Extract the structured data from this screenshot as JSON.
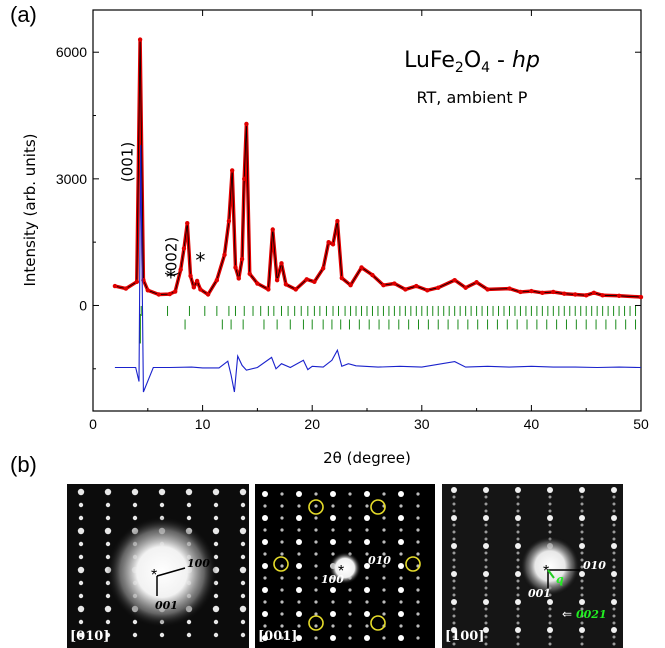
{
  "panel_a_label": "(a)",
  "panel_b_label": "(b)",
  "chart_data": {
    "type": "line",
    "title": "LuFe2O4 - hp",
    "title_parts": {
      "compound": "LuFe",
      "sub1": "2",
      "mid": "O",
      "sub2": "4",
      "sep": " - ",
      "phase": "hp"
    },
    "subtitle": "RT, ambient P",
    "xlabel": "2θ (degree)",
    "ylabel": "Intensity (arb. units)",
    "xlim": [
      0,
      50
    ],
    "ylim": [
      -2500,
      7000
    ],
    "x_ticks": [
      0,
      10,
      20,
      30,
      40,
      50
    ],
    "y_ticks": [
      0,
      3000,
      6000
    ],
    "grid": false,
    "annotations": [
      {
        "text": "(001)",
        "x": 3.6,
        "y": 3400,
        "rotate": true
      },
      {
        "text": "(002)",
        "x": 7.6,
        "y": 1150,
        "rotate": true
      },
      {
        "text": "*",
        "x": 7.1,
        "y": 500
      },
      {
        "text": "*",
        "x": 9.8,
        "y": 900
      }
    ],
    "series": [
      {
        "role": "observed",
        "color": "#e00000",
        "x": [
          2,
          3,
          4,
          4.3,
          4.6,
          5,
          6,
          7,
          7.5,
          8,
          8.3,
          8.6,
          8.9,
          9.2,
          9.5,
          9.8,
          10.5,
          11.3,
          12,
          12.4,
          12.7,
          13,
          13.3,
          13.6,
          13.8,
          14,
          14.3,
          15,
          16,
          16.4,
          16.8,
          17.2,
          17.6,
          18.5,
          19.5,
          20.2,
          21,
          21.5,
          21.9,
          22.3,
          22.7,
          23.5,
          24.5,
          25.5,
          26.5,
          27.5,
          28.5,
          29.5,
          30.5,
          31.5,
          33,
          34,
          35,
          36,
          38,
          39,
          40,
          41,
          42,
          43,
          44,
          45,
          45.7,
          46.5,
          48,
          50
        ],
        "y": [
          460,
          400,
          560,
          6300,
          600,
          360,
          260,
          270,
          330,
          850,
          1350,
          1950,
          700,
          430,
          580,
          380,
          260,
          600,
          1200,
          2000,
          3200,
          900,
          640,
          1100,
          3000,
          4300,
          750,
          520,
          380,
          1800,
          600,
          1000,
          500,
          380,
          620,
          560,
          880,
          1500,
          1450,
          2000,
          650,
          480,
          900,
          720,
          480,
          520,
          380,
          460,
          360,
          420,
          600,
          420,
          550,
          380,
          400,
          320,
          340,
          300,
          320,
          280,
          260,
          240,
          300,
          240,
          230,
          200
        ]
      },
      {
        "role": "difference",
        "color": "#1a22cc",
        "x": [
          2,
          3.9,
          4.2,
          4.35,
          4.6,
          5.5,
          7,
          9,
          10,
          11.5,
          12.3,
          12.6,
          12.9,
          13.2,
          13.6,
          14,
          15,
          16.3,
          16.7,
          17.2,
          18,
          19.2,
          19.6,
          20,
          21,
          21.8,
          22.3,
          22.7,
          23.3,
          24,
          26,
          28,
          30,
          33,
          34,
          36,
          38,
          40,
          42,
          44,
          46,
          48,
          50
        ],
        "y": [
          -1470,
          -1470,
          -1800,
          3800,
          -2050,
          -1470,
          -1470,
          -1460,
          -1480,
          -1480,
          -1320,
          -1650,
          -2050,
          -1200,
          -1420,
          -1530,
          -1470,
          -1230,
          -1500,
          -1380,
          -1470,
          -1300,
          -1520,
          -1440,
          -1460,
          -1300,
          -1060,
          -1440,
          -1380,
          -1430,
          -1460,
          -1440,
          -1460,
          -1330,
          -1460,
          -1440,
          -1460,
          -1440,
          -1460,
          -1460,
          -1470,
          -1460,
          -1470
        ]
      }
    ],
    "reflection_ticks": {
      "color": "#1a8a1a",
      "row1_y": -130,
      "row2_y": -450,
      "row1_positions": [
        4.4,
        6.8,
        8.8,
        10.2,
        11.3,
        12.4,
        13.0,
        13.8,
        14.6,
        15.3,
        16.0,
        16.5,
        17.2,
        17.8,
        18.4,
        19.0,
        19.6,
        20.2,
        20.7,
        21.3,
        21.9,
        22.4,
        23.0,
        23.5,
        24.0,
        24.5,
        25.0,
        25.5,
        26.0,
        26.5,
        27.0,
        27.5,
        28.0,
        28.5,
        29.0,
        29.5,
        30.0,
        30.5,
        31.0,
        31.5,
        32.0,
        32.5,
        33.0,
        33.5,
        34.0,
        34.5,
        35.0,
        35.5,
        36.0,
        36.5,
        37.0,
        37.5,
        38.0,
        38.5,
        39.0,
        39.5,
        40.0,
        40.5,
        41.0,
        41.5,
        42.0,
        42.5,
        43.0,
        43.5,
        44.0,
        44.5,
        45.0,
        45.5,
        46.0,
        46.5,
        47.0,
        47.5,
        48.0,
        48.5,
        49.0,
        49.5
      ],
      "row2_positions": [
        4.3,
        8.4,
        11.8,
        12.6,
        13.7,
        15.6,
        16.8,
        18.0,
        19.2,
        20.0,
        21.0,
        21.8,
        22.6,
        23.4,
        24.3,
        25.2,
        26.1,
        27.0,
        27.9,
        28.8,
        29.7,
        30.6,
        31.5,
        32.4,
        33.3,
        34.2,
        35.1,
        36.0,
        36.9,
        37.8,
        38.7,
        39.6,
        40.5,
        41.4,
        42.3,
        43.2,
        44.1,
        45.0,
        45.9,
        46.8,
        47.7,
        48.6,
        49.5
      ]
    }
  },
  "diffraction_patterns": [
    {
      "zone": "[010]",
      "vectors": [
        {
          "label": "100"
        },
        {
          "label": "001"
        }
      ]
    },
    {
      "zone": "[001]",
      "vectors": [
        {
          "label": "010"
        },
        {
          "label": "100"
        }
      ]
    },
    {
      "zone": "[100]",
      "vectors": [
        {
          "label": "010"
        },
        {
          "label": "001"
        },
        {
          "label": "q"
        },
        {
          "label": "0021"
        }
      ]
    }
  ]
}
